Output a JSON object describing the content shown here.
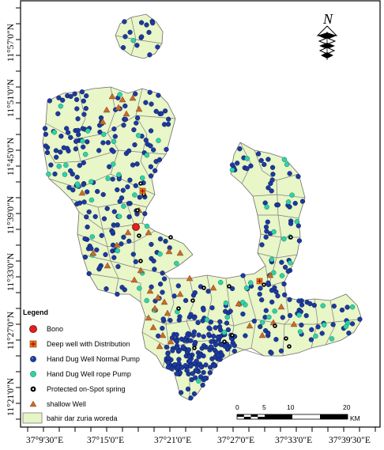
{
  "map": {
    "lat_labels": [
      "11°57'0\"N",
      "11°51'0\"N",
      "11°45'0\"N",
      "11°39'0\"N",
      "11°33'0\"N",
      "11°27'0\"N",
      "11°21'0\"N"
    ],
    "lon_labels": [
      "37°9'30\"E",
      "37°15'0\"E",
      "37°21'0\"E",
      "37°27'0\"E",
      "37°33'0\"E",
      "37°39'30\"E"
    ],
    "north_letter": "N"
  },
  "legend": {
    "title": "Legend",
    "items": [
      {
        "label": "Bono",
        "symbol": "bono-icon",
        "color": "#e32020"
      },
      {
        "label": "Deep well with Distribution",
        "symbol": "deep-well-icon",
        "color": "#e57a1d"
      },
      {
        "label": "Hand Dug Well Normal Pump",
        "symbol": "normal-pump-icon",
        "color": "#1f3f9a"
      },
      {
        "label": "Hand Dug Well rope Pump",
        "symbol": "rope-pump-icon",
        "color": "#2ec99b"
      },
      {
        "label": "Protected on-Spot spring",
        "symbol": "spring-icon",
        "color": "#000000"
      },
      {
        "label": "shallow Well",
        "symbol": "shallow-well-icon",
        "color": "#c96a2b"
      },
      {
        "label": "bahir dar zuria woreda",
        "symbol": "woreda-area-icon",
        "color": "#e7f5c6"
      }
    ]
  },
  "scale": {
    "ticks": [
      "0",
      "5",
      "10",
      "20"
    ],
    "unit": "KM"
  },
  "colors": {
    "land": "#e8f6c8",
    "boundary": "#7c7c7c",
    "blue_well": "#1c3aa0",
    "green_well": "#2fd3a5"
  }
}
